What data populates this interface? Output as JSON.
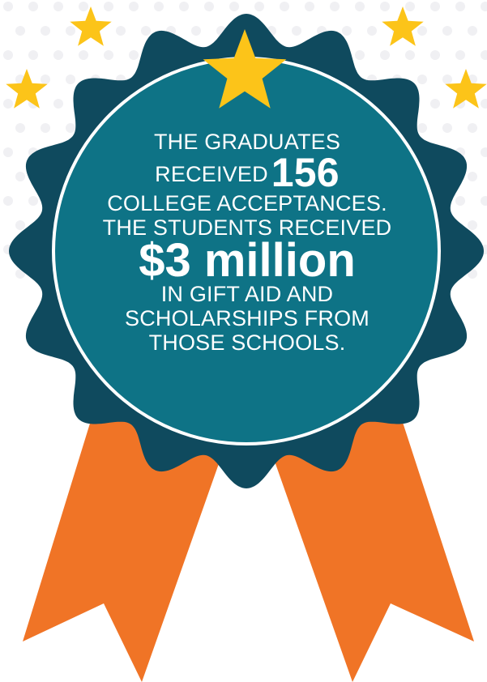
{
  "colors": {
    "badge_outer": "#0f4a5e",
    "badge_inner": "#0e7386",
    "ring": "#ffffff",
    "ribbon": "#f07426",
    "star": "#fcc419",
    "background_dots": "#f2f2f4"
  },
  "icons": {
    "star": "star-icon",
    "ribbon": "ribbon-icon",
    "badge": "rosette-badge-icon"
  },
  "badge": {
    "line1": "THE GRADUATES",
    "line2_prefix": "RECEIVED",
    "acceptances_count": "156",
    "line3": "COLLEGE ACCEPTANCES.",
    "line4": "THE STUDENTS RECEIVED",
    "amount": "$3 million",
    "line5": "IN GIFT AID AND",
    "line6": "SCHOLARSHIPS FROM",
    "line7": "THOSE SCHOOLS."
  }
}
